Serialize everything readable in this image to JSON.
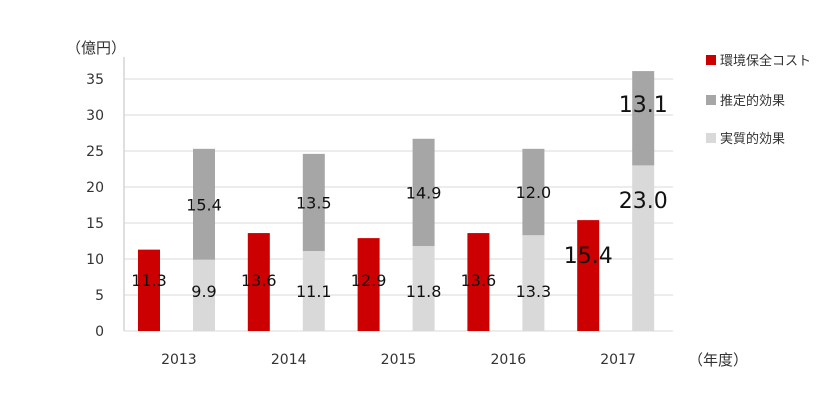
{
  "chart_data": {
    "type": "bar",
    "stacked_group": "effects",
    "categories": [
      "2013",
      "2014",
      "2015",
      "2016",
      "2017"
    ],
    "xlabel": "（年度）",
    "ylabel": "（億円）",
    "ylim": [
      0,
      35
    ],
    "yticks": [
      0,
      5,
      10,
      15,
      20,
      25,
      30,
      35
    ],
    "grid": true,
    "legend_position": "right",
    "series": [
      {
        "name": "環境保全コスト",
        "values": [
          11.3,
          13.6,
          12.9,
          13.6,
          15.4
        ],
        "color": "#cc0000",
        "labels": [
          "11.3",
          "13.6",
          "12.9",
          "13.6",
          "15.4"
        ]
      },
      {
        "name": "推定的効果",
        "values": [
          15.4,
          13.5,
          14.9,
          12.0,
          13.1
        ],
        "color": "#a6a6a6",
        "stack": "effects",
        "labels": [
          "15.4",
          "13.5",
          "14.9",
          "12.0",
          "13.1"
        ]
      },
      {
        "name": "実質的効果",
        "values": [
          9.9,
          11.1,
          11.8,
          13.3,
          23.0
        ],
        "color": "#d9d9d9",
        "stack": "effects",
        "labels": [
          "9.9",
          "11.1",
          "11.8",
          "13.3",
          "23.0"
        ]
      }
    ]
  }
}
